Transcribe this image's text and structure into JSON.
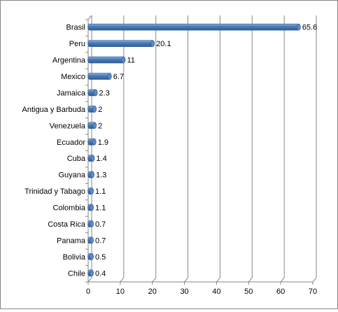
{
  "chart_data": {
    "type": "bar",
    "orientation": "horizontal",
    "style": "3d-cylinder",
    "bar_color": "#4F81BD",
    "grid": "vertical",
    "categories": [
      "Brasil",
      "Peru",
      "Argentina",
      "Mexico",
      "Jamaica",
      "Antigua y Barbuda",
      "Venezuela",
      "Ecuador",
      "Cuba",
      "Guyana",
      "Trinidad y Tabago",
      "Colombia",
      "Costa Rica",
      "Panama",
      "Bolivia",
      "Chile"
    ],
    "values": [
      65.6,
      20.1,
      11,
      6.7,
      2.3,
      2,
      2,
      1.9,
      1.4,
      1.3,
      1.1,
      1.1,
      0.7,
      0.7,
      0.5,
      0.4
    ],
    "data_labels": [
      "65.6",
      "20.1",
      "11",
      "6.7",
      "2.3",
      "2",
      "2",
      "1.9",
      "1.4",
      "1.3",
      "1.1",
      "1.1",
      "0.7",
      "0.7",
      "0.5",
      "0.4"
    ],
    "xlim": [
      0,
      70
    ],
    "xticks": [
      "0",
      "10",
      "20",
      "30",
      "40",
      "50",
      "60",
      "70"
    ],
    "title": "",
    "xlabel": "",
    "ylabel": ""
  }
}
